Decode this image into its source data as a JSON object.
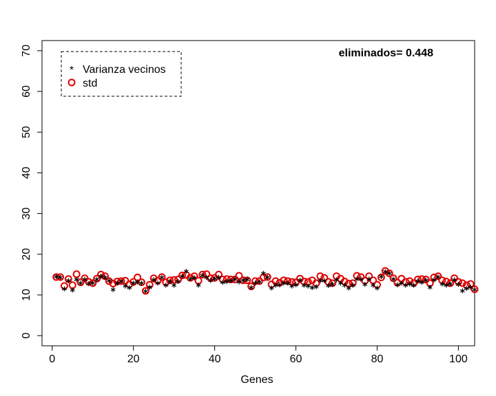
{
  "chart_data": {
    "type": "scatter",
    "title": "",
    "xlabel": "Genes",
    "ylabel": "",
    "xlim": [
      -2.5,
      104
    ],
    "ylim": [
      -2.5,
      72.5
    ],
    "xticks": [
      0,
      20,
      40,
      60,
      80,
      100
    ],
    "yticks": [
      0,
      10,
      20,
      30,
      40,
      50,
      60,
      70
    ],
    "annotation": "eliminados= 0.448",
    "legend": {
      "position": "top-left",
      "entries": [
        {
          "label": "Varianza vecinos",
          "marker": "*",
          "color": "#000000"
        },
        {
          "label": "std",
          "marker": "o",
          "color": "#e00000"
        }
      ]
    },
    "x": [
      1,
      2,
      3,
      4,
      5,
      6,
      7,
      8,
      9,
      10,
      11,
      12,
      13,
      14,
      15,
      16,
      17,
      18,
      19,
      20,
      21,
      22,
      23,
      24,
      25,
      26,
      27,
      28,
      29,
      30,
      31,
      32,
      33,
      34,
      35,
      36,
      37,
      38,
      39,
      40,
      41,
      42,
      43,
      44,
      45,
      46,
      47,
      48,
      49,
      50,
      51,
      52,
      53,
      54,
      55,
      56,
      57,
      58,
      59,
      60,
      61,
      62,
      63,
      64,
      65,
      66,
      67,
      68,
      69,
      70,
      71,
      72,
      73,
      74,
      75,
      76,
      77,
      78,
      79,
      80,
      81,
      82,
      83,
      84,
      85,
      86,
      87,
      88,
      89,
      90,
      91,
      92,
      93,
      94,
      95,
      96,
      97,
      98,
      99,
      100,
      101,
      102,
      103,
      104
    ],
    "series": [
      {
        "name": "Varianza vecinos",
        "marker": "*",
        "color": "#000000",
        "values": [
          14.5,
          14.3,
          11.5,
          13.5,
          11.2,
          13.8,
          12.9,
          13.8,
          12.8,
          12.9,
          13.8,
          14.6,
          14.3,
          13.5,
          11.3,
          12.9,
          13.3,
          12.2,
          11.8,
          12.9,
          13.2,
          12.9,
          10.9,
          11.9,
          13.7,
          12.9,
          14.3,
          12.4,
          13.3,
          12.4,
          13.3,
          14.6,
          15.8,
          13.9,
          14.2,
          12.4,
          14.8,
          14.3,
          13.6,
          14.0,
          14.3,
          13.1,
          13.3,
          13.5,
          13.9,
          13.2,
          13.6,
          13.8,
          11.8,
          12.9,
          13.2,
          15.3,
          14.3,
          11.7,
          12.4,
          12.5,
          12.9,
          12.9,
          12.2,
          12.5,
          13.6,
          12.4,
          12.2,
          11.8,
          12.0,
          13.5,
          13.5,
          12.3,
          12.6,
          13.7,
          12.9,
          12.4,
          11.7,
          12.4,
          13.9,
          13.9,
          12.6,
          13.9,
          12.4,
          11.7,
          14.5,
          15.7,
          15.3,
          13.9,
          12.5,
          12.9,
          12.4,
          12.7,
          12.4,
          13.4,
          13.1,
          13.6,
          11.9,
          13.7,
          14.4,
          12.7,
          12.4,
          12.7,
          13.7,
          12.6,
          11.0,
          11.6,
          11.9,
          11.3
        ]
      },
      {
        "name": "std",
        "marker": "o",
        "color": "#e00000",
        "values": [
          14.4,
          14.4,
          12.2,
          13.9,
          12.4,
          15.1,
          13.1,
          14.1,
          13.2,
          12.9,
          14.0,
          15.0,
          14.6,
          13.4,
          12.8,
          13.3,
          13.4,
          13.5,
          12.6,
          13.2,
          14.3,
          13.1,
          11.0,
          12.5,
          14.1,
          13.5,
          14.4,
          13.1,
          13.6,
          13.7,
          13.8,
          14.8,
          14.9,
          14.2,
          14.6,
          13.5,
          15.0,
          15.1,
          14.1,
          14.2,
          15.0,
          13.8,
          13.9,
          13.8,
          13.8,
          14.7,
          13.6,
          13.6,
          12.1,
          13.4,
          13.4,
          14.3,
          14.4,
          12.6,
          13.4,
          13.0,
          13.6,
          13.4,
          13.2,
          13.1,
          14.0,
          13.3,
          13.2,
          13.6,
          12.9,
          14.6,
          14.2,
          13.2,
          12.9,
          14.6,
          14.0,
          13.3,
          12.8,
          12.9,
          14.7,
          14.4,
          13.5,
          14.6,
          13.6,
          12.5,
          14.3,
          15.9,
          15.3,
          14.1,
          13.0,
          14.0,
          13.2,
          13.4,
          12.9,
          13.8,
          13.9,
          13.8,
          12.9,
          14.3,
          14.6,
          13.6,
          13.3,
          12.9,
          14.1,
          13.2,
          12.9,
          12.4,
          12.7,
          11.4
        ]
      }
    ]
  }
}
